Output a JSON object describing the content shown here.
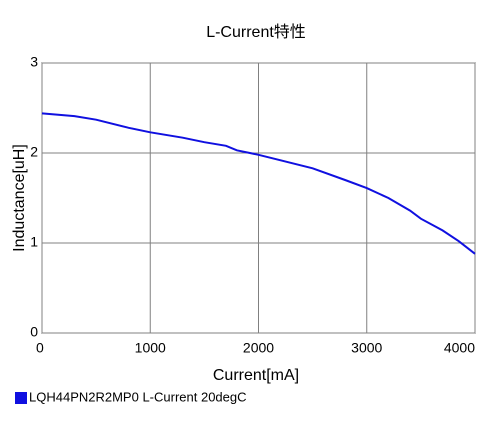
{
  "chart_data": {
    "type": "line",
    "title": "L-Current特性",
    "x_label": "Current[mA]",
    "y_label": "Inductance[uH]",
    "xlim": [
      0,
      4000
    ],
    "xticks": [
      0,
      1000,
      2000,
      3000,
      4000
    ],
    "ylim": [
      0,
      3
    ],
    "yticks": [
      0,
      1,
      2,
      3
    ],
    "grid": true,
    "x": [
      0,
      300,
      500,
      800,
      1000,
      1300,
      1500,
      1700,
      1800,
      2000,
      2200,
      2500,
      2800,
      3000,
      3200,
      3400,
      3500,
      3700,
      3850,
      4000
    ],
    "series": [
      {
        "name": "LQH44PN2R2MP0 L-Current 20degC",
        "color": "#1010e0",
        "values": [
          2.44,
          2.41,
          2.37,
          2.28,
          2.23,
          2.17,
          2.12,
          2.08,
          2.03,
          1.98,
          1.92,
          1.83,
          1.7,
          1.61,
          1.5,
          1.36,
          1.27,
          1.14,
          1.02,
          0.88
        ]
      }
    ]
  }
}
